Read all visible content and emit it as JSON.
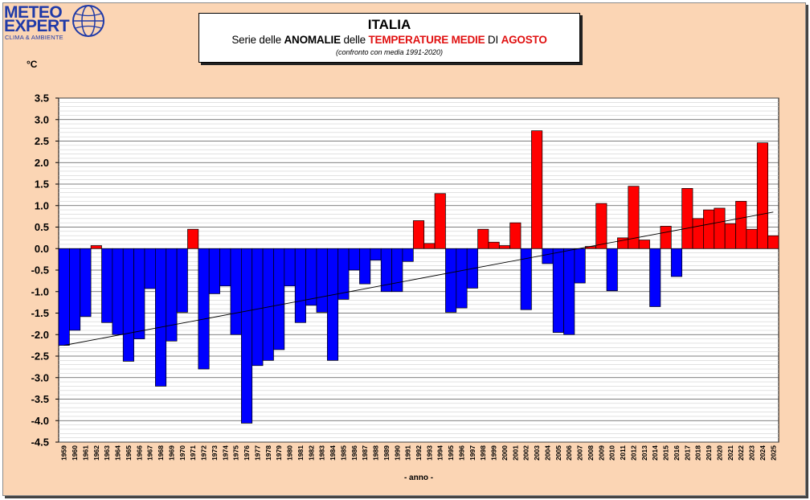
{
  "logo": {
    "line1": "METEO",
    "line2": "EXPERT",
    "tagline": "CLIMA & AMBIENTE"
  },
  "title": {
    "main": "ITALIA",
    "part1": "Serie delle ",
    "part2": "ANOMALIE",
    "part3": " delle ",
    "part4": "TEMPERATURE MEDIE",
    "part5": " DI ",
    "part6": "AGOSTO",
    "note": "(confronto con media 1991-2020)"
  },
  "chart_data": {
    "type": "bar",
    "ylabel": "°C",
    "xlabel": "- anno -",
    "ylim": [
      -4.5,
      3.5
    ],
    "y_ticks": [
      "3.5",
      "3.0",
      "2.5",
      "2.0",
      "1.5",
      "1.0",
      "0.5",
      "0.0",
      "-0.5",
      "-1.0",
      "-1.5",
      "-2.0",
      "-2.5",
      "-3.0",
      "-3.5",
      "-4.0",
      "-4.5"
    ],
    "grid": true,
    "colors": {
      "positive": "#ff0000",
      "negative": "#0000ff"
    },
    "trendline": {
      "start": -2.25,
      "end": 0.85
    },
    "categories": [
      "1959",
      "1960",
      "1961",
      "1962",
      "1963",
      "1964",
      "1965",
      "1966",
      "1967",
      "1968",
      "1969",
      "1970",
      "1971",
      "1972",
      "1973",
      "1974",
      "1975",
      "1976",
      "1977",
      "1978",
      "1979",
      "1980",
      "1981",
      "1982",
      "1983",
      "1984",
      "1985",
      "1986",
      "1987",
      "1988",
      "1989",
      "1990",
      "1991",
      "1992",
      "1993",
      "1994",
      "1995",
      "1996",
      "1997",
      "1998",
      "1999",
      "2000",
      "2001",
      "2002",
      "2003",
      "2004",
      "2005",
      "2006",
      "2007",
      "2008",
      "2009",
      "2010",
      "2011",
      "2012",
      "2013",
      "2014",
      "2015",
      "2016",
      "2017",
      "2018",
      "2019",
      "2020",
      "2021",
      "2022",
      "2023",
      "2024",
      "2025"
    ],
    "values": [
      -2.25,
      -1.9,
      -1.58,
      0.07,
      -1.72,
      -2.0,
      -2.62,
      -2.1,
      -0.93,
      -3.2,
      -2.15,
      -1.48,
      0.45,
      -2.8,
      -1.05,
      -0.87,
      -2.0,
      -4.06,
      -2.72,
      -2.6,
      -2.35,
      -0.87,
      -1.72,
      -1.32,
      -1.48,
      -2.6,
      -1.18,
      -0.5,
      -0.82,
      -0.27,
      -1.0,
      -1.0,
      -0.3,
      0.65,
      0.12,
      1.28,
      -1.48,
      -1.38,
      -0.92,
      0.45,
      0.15,
      0.07,
      0.6,
      -1.42,
      2.74,
      -0.35,
      -1.95,
      -2.0,
      -0.8,
      0.05,
      1.05,
      -0.98,
      0.25,
      1.45,
      0.2,
      -1.35,
      0.52,
      -0.65,
      1.4,
      0.7,
      0.9,
      0.94,
      0.58,
      1.1,
      0.45,
      2.46,
      0.3
    ]
  }
}
